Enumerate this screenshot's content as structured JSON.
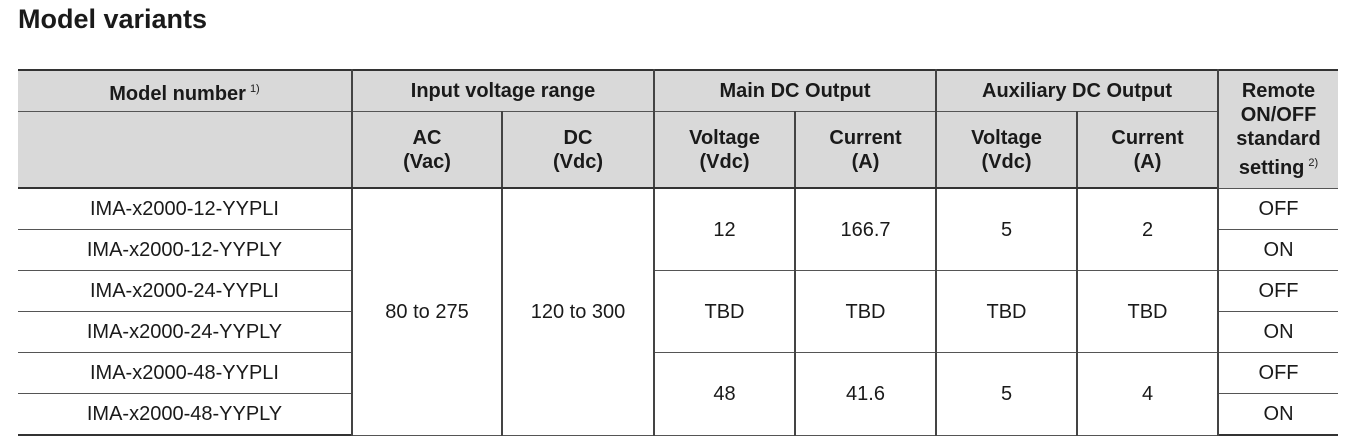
{
  "title": "Model variants",
  "table": {
    "header_groups": [
      {
        "text": "Model number",
        "note": "1)"
      },
      {
        "text": "Input voltage range"
      },
      {
        "text": "Main DC Output"
      },
      {
        "text": "Auxiliary DC Output"
      },
      {
        "text": "Remote ON/OFF standard setting",
        "note": "2)"
      }
    ],
    "sub_headers": [
      [
        "AC",
        "(Vac)"
      ],
      [
        "DC",
        "(Vdc)"
      ],
      [
        "Voltage",
        "(Vdc)"
      ],
      [
        "Current",
        "(A)"
      ],
      [
        "Voltage",
        "(Vdc)"
      ],
      [
        "Current",
        "(A)"
      ]
    ],
    "models": [
      "IMA-x2000-12-YYPLI",
      "IMA-x2000-12-YYPLY",
      "IMA-x2000-24-YYPLI",
      "IMA-x2000-24-YYPLY",
      "IMA-x2000-48-YYPLI",
      "IMA-x2000-48-YYPLY"
    ],
    "input_ac": "80 to 275",
    "input_dc": "120 to 300",
    "output_groups": [
      {
        "main_voltage": 12,
        "main_current": 166.7,
        "aux_voltage": 5,
        "aux_current": 2
      },
      {
        "main_voltage": "TBD",
        "main_current": "TBD",
        "aux_voltage": "TBD",
        "aux_current": "TBD"
      },
      {
        "main_voltage": 48,
        "main_current": 41.6,
        "aux_voltage": 5,
        "aux_current": 4
      }
    ],
    "remote": [
      "OFF",
      "ON",
      "OFF",
      "ON",
      "OFF",
      "ON"
    ]
  }
}
